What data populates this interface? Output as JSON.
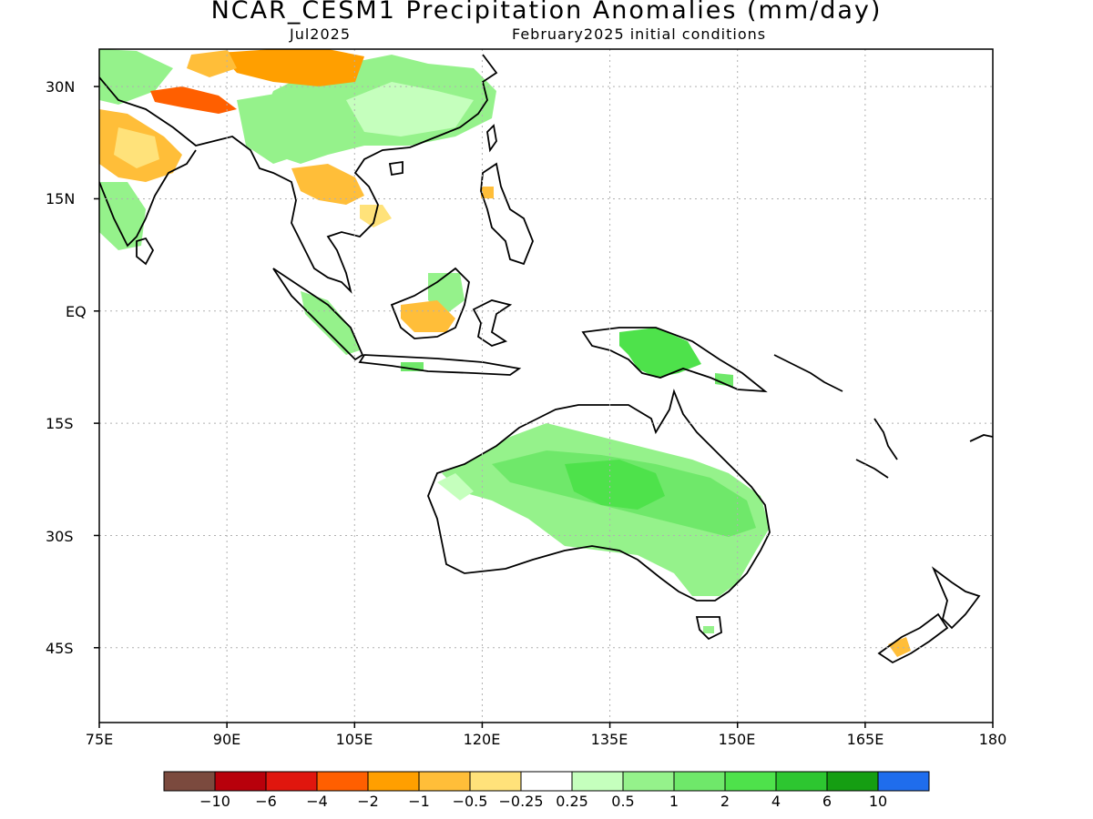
{
  "header": {
    "title": "NCAR_CESM1 Precipitation Anomalies (mm/day)",
    "month": "Jul2025",
    "init": "February2025 initial conditions"
  },
  "axes": {
    "lat_labels": [
      "30N",
      "15N",
      "EQ",
      "15S",
      "30S",
      "45S"
    ],
    "lon_labels": [
      "75E",
      "90E",
      "105E",
      "120E",
      "135E",
      "150E",
      "165E",
      "180"
    ]
  },
  "colorbar": {
    "colors": [
      "#7b4a3e",
      "#b8000b",
      "#e0160e",
      "#ff5f00",
      "#ff9f00",
      "#ffbe39",
      "#ffe27a",
      "#ffffff",
      "#c5ffbd",
      "#95f28b",
      "#6fe86a",
      "#4ee24b",
      "#2dc630",
      "#159e12",
      "#1f6ded"
    ],
    "labels": [
      "-10",
      "-6",
      "-4",
      "-2",
      "-1",
      "-0.5",
      "-0.25",
      "0.25",
      "0.5",
      "1",
      "2",
      "4",
      "6",
      "10"
    ]
  },
  "map_data": {
    "lon_range": [
      75,
      180
    ],
    "lat_range": [
      -55,
      35
    ],
    "grid": true,
    "anomaly_regions": [
      {
        "name": "central-australia-wet",
        "category": "2 to 4"
      },
      {
        "name": "australia-wet-belt",
        "category": "1 to 2"
      },
      {
        "name": "new-guinea-wet",
        "category": "2 to 4"
      },
      {
        "name": "southern-china-wet",
        "category": "1 to 2"
      },
      {
        "name": "tibet-dry",
        "category": "-2 to -1"
      },
      {
        "name": "himalaya-dry",
        "category": "-4 to -2"
      },
      {
        "name": "india-dry",
        "category": "-1 to -0.5"
      },
      {
        "name": "indochina-dry",
        "category": "-1 to -0.5"
      },
      {
        "name": "sumatra-wet",
        "category": "1 to 2"
      },
      {
        "name": "borneo-dry",
        "category": "-1 to -0.5"
      },
      {
        "name": "new-zealand-dry",
        "category": "-1 to -0.5"
      }
    ]
  }
}
